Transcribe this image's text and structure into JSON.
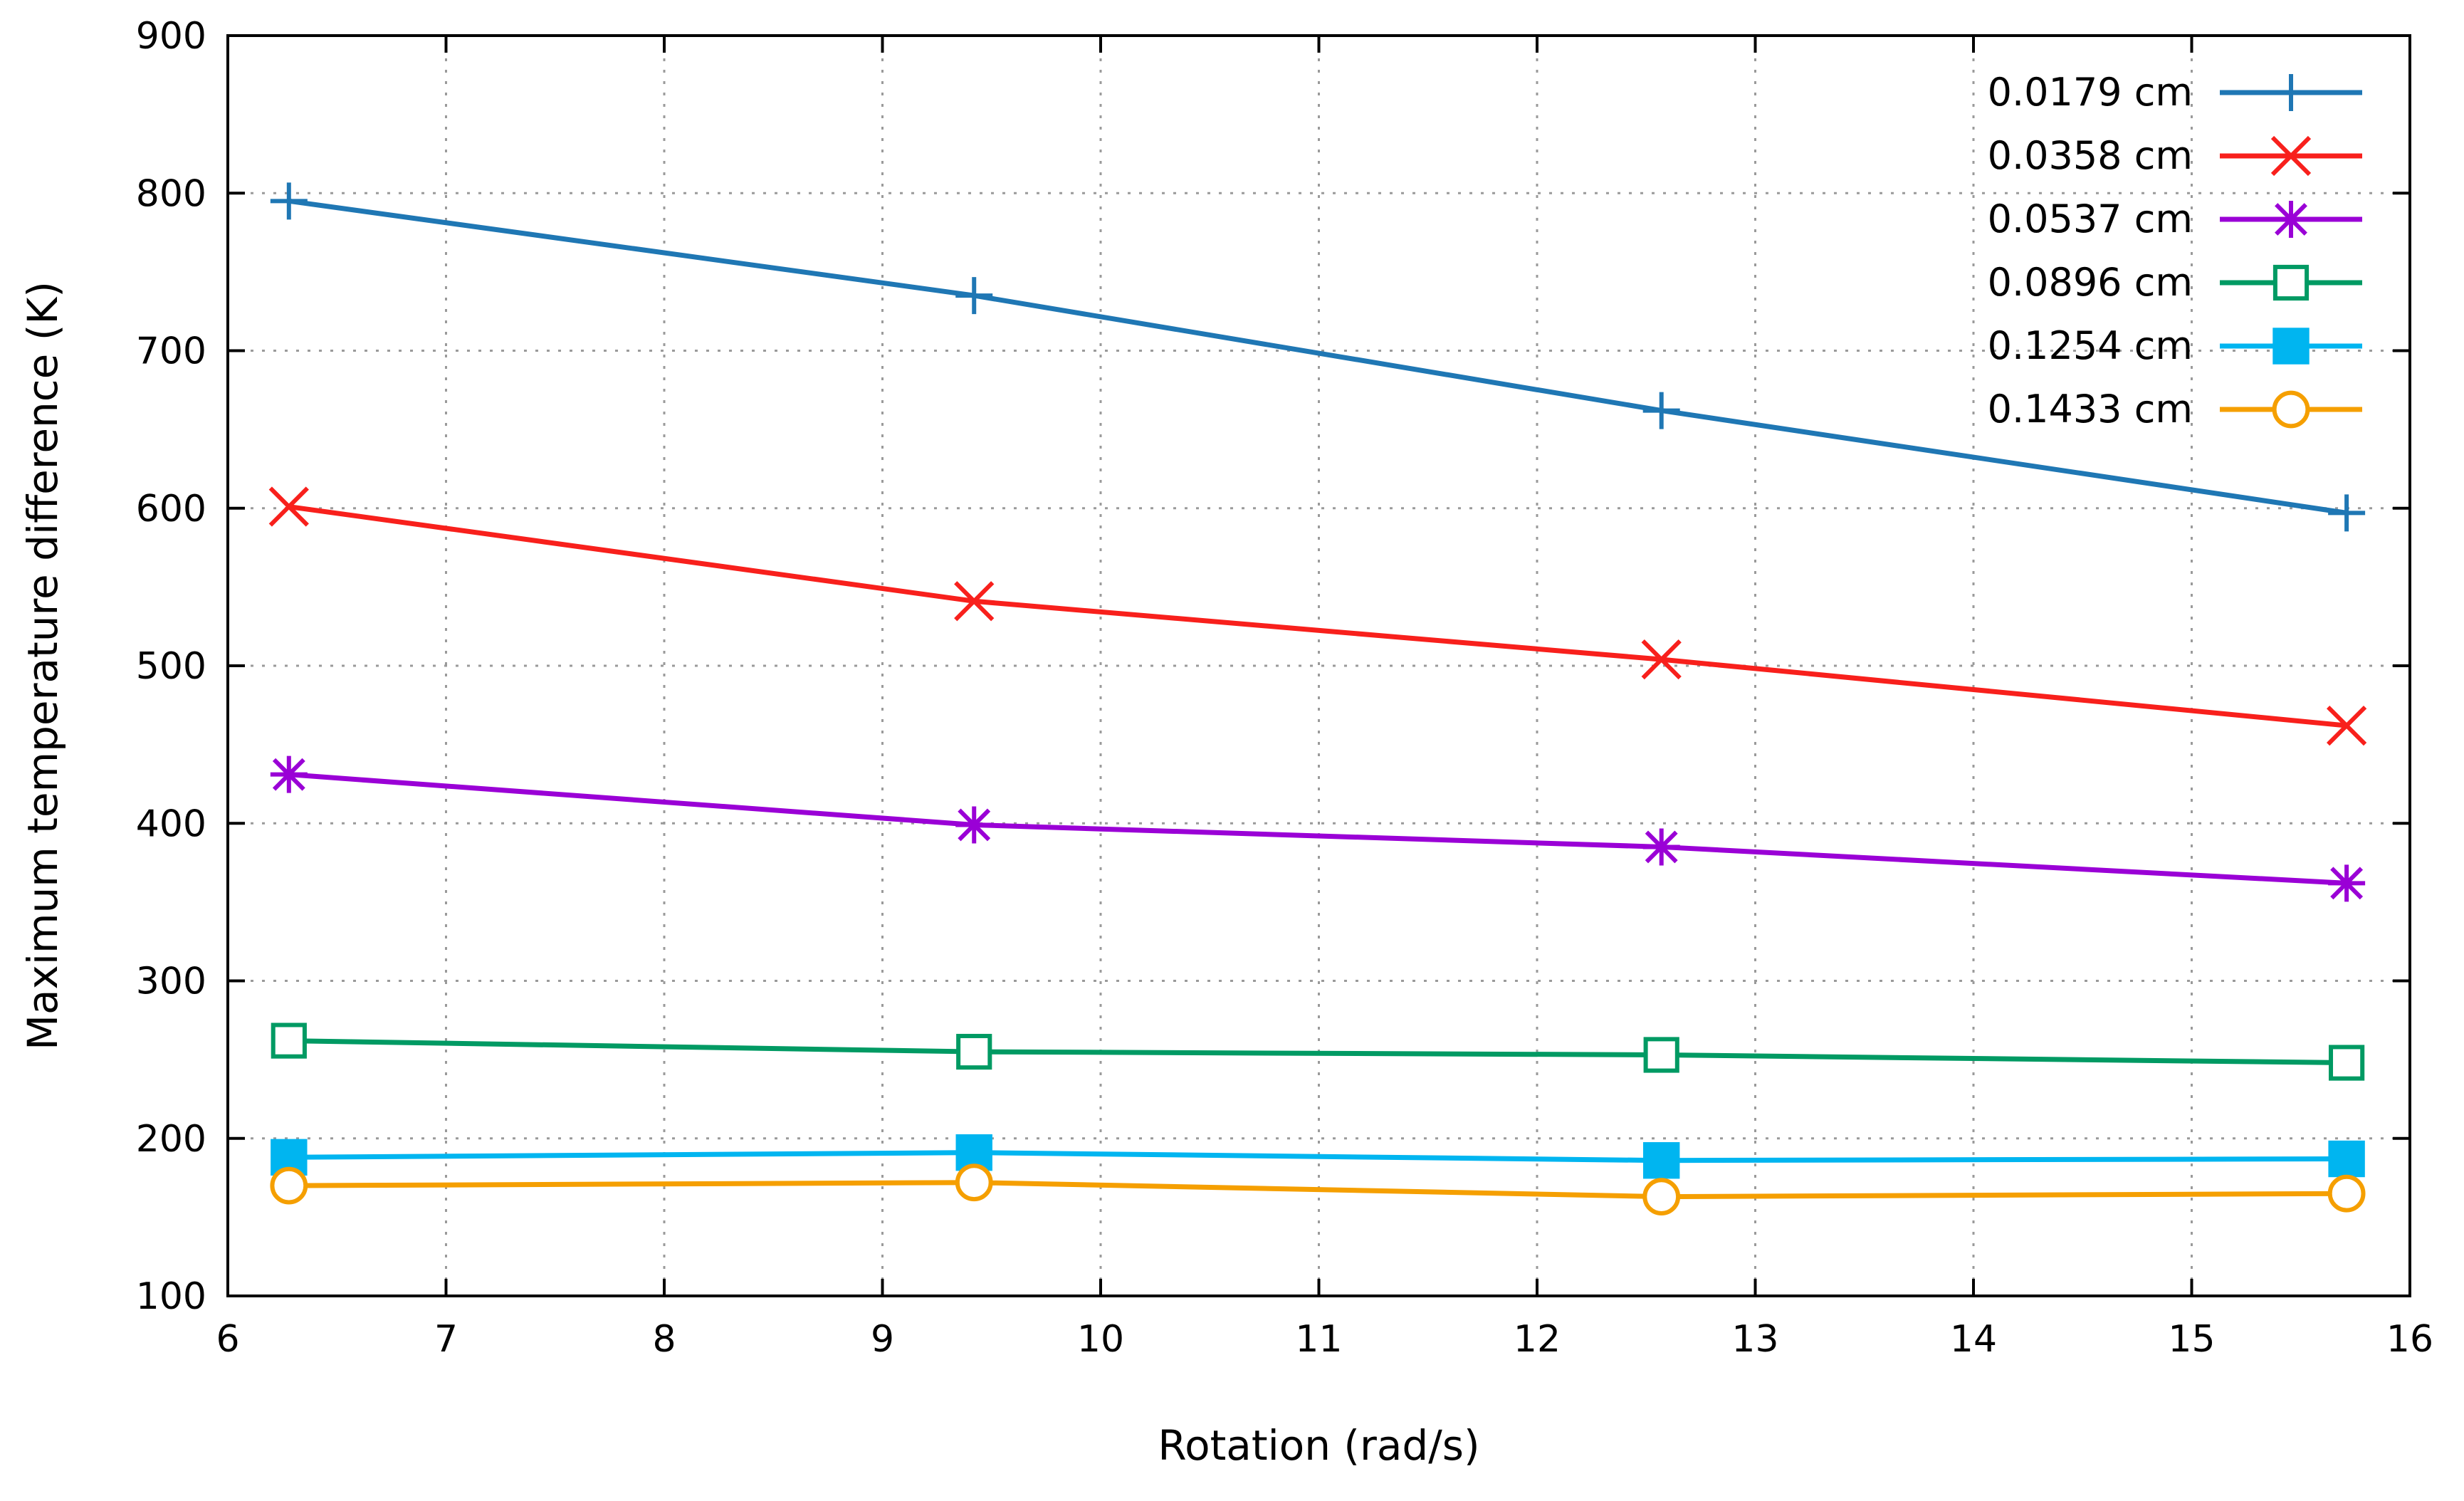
{
  "chart_data": {
    "type": "line",
    "title": "",
    "xlabel": "Rotation (rad/s)",
    "ylabel": "Maximum temperature difference (K)",
    "xlim": [
      6,
      16
    ],
    "ylim": [
      100,
      900
    ],
    "xticks": [
      6,
      7,
      8,
      9,
      10,
      11,
      12,
      13,
      14,
      15,
      16
    ],
    "yticks": [
      100,
      200,
      300,
      400,
      500,
      600,
      700,
      800,
      900
    ],
    "grid": true,
    "legend_position": "top-right",
    "x": [
      6.28,
      9.42,
      12.57,
      15.71
    ],
    "series": [
      {
        "name": "0.0179 cm",
        "marker": "plus",
        "color": "#1f77b4",
        "values": [
          795,
          735,
          662,
          597
        ]
      },
      {
        "name": "0.0358 cm",
        "marker": "cross",
        "color": "#f8201c",
        "values": [
          601,
          541,
          504,
          462
        ]
      },
      {
        "name": "0.0537 cm",
        "marker": "star",
        "color": "#9a00d6",
        "values": [
          431,
          399,
          385,
          362
        ]
      },
      {
        "name": "0.0896 cm",
        "marker": "open-square",
        "color": "#009a63",
        "values": [
          262,
          255,
          253,
          248
        ]
      },
      {
        "name": "0.1254 cm",
        "marker": "filled-square",
        "color": "#00b5f0",
        "values": [
          188,
          191,
          186,
          187
        ]
      },
      {
        "name": "0.1433 cm",
        "marker": "open-circle",
        "color": "#f59f00",
        "values": [
          170,
          172,
          163,
          165
        ]
      }
    ]
  }
}
